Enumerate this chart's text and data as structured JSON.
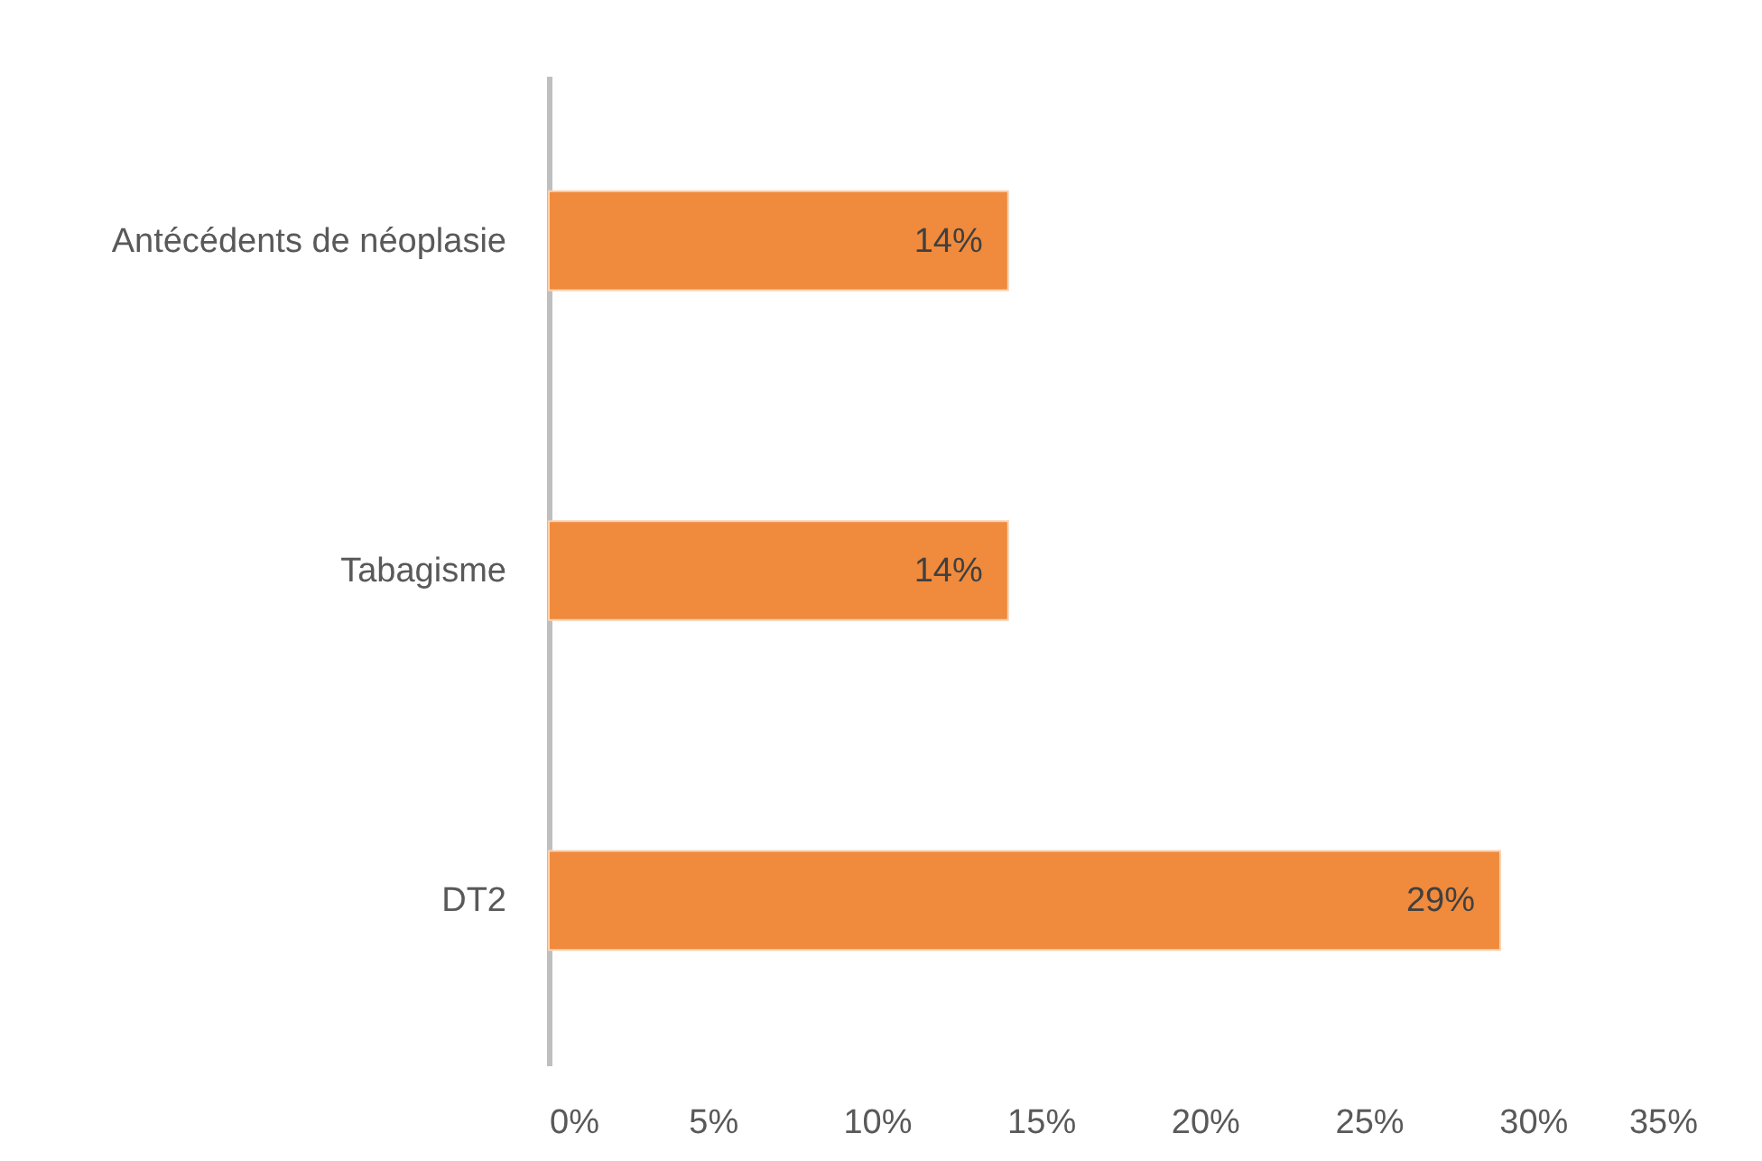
{
  "chart_data": {
    "type": "bar",
    "orientation": "horizontal",
    "categories": [
      "Antécédents de néoplasie",
      "Tabagisme",
      "DT2"
    ],
    "values": [
      14,
      14,
      29
    ],
    "color": "#f08a3c",
    "value_labels": [
      "14%",
      "14%",
      "29%"
    ],
    "xlim": [
      0,
      35
    ],
    "xticks": [
      {
        "value": 0,
        "label": "0%"
      },
      {
        "value": 5,
        "label": "5%"
      },
      {
        "value": 10,
        "label": "10%"
      },
      {
        "value": 15,
        "label": "15%"
      },
      {
        "value": 20,
        "label": "20%"
      },
      {
        "value": 25,
        "label": "25%"
      },
      {
        "value": 30,
        "label": "30%"
      },
      {
        "value": 35,
        "label": "35%"
      }
    ],
    "grid": false
  }
}
